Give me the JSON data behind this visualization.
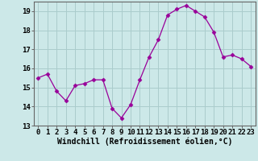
{
  "x": [
    0,
    1,
    2,
    3,
    4,
    5,
    6,
    7,
    8,
    9,
    10,
    11,
    12,
    13,
    14,
    15,
    16,
    17,
    18,
    19,
    20,
    21,
    22,
    23
  ],
  "y": [
    15.5,
    15.7,
    14.8,
    14.3,
    15.1,
    15.2,
    15.4,
    15.4,
    13.9,
    13.4,
    14.1,
    15.4,
    16.6,
    17.5,
    18.8,
    19.1,
    19.3,
    19.0,
    18.7,
    17.9,
    16.6,
    16.7,
    16.5,
    16.1
  ],
  "line_color": "#990099",
  "marker": "D",
  "marker_size": 2.5,
  "bg_color": "#cce8e8",
  "grid_color": "#aacccc",
  "xlabel": "Windchill (Refroidissement éolien,°C)",
  "xlabel_fontsize": 7,
  "tick_fontsize": 6.5,
  "ylim": [
    13,
    19.5
  ],
  "xlim": [
    -0.5,
    23.5
  ],
  "yticks": [
    13,
    14,
    15,
    16,
    17,
    18,
    19
  ],
  "xticks": [
    0,
    1,
    2,
    3,
    4,
    5,
    6,
    7,
    8,
    9,
    10,
    11,
    12,
    13,
    14,
    15,
    16,
    17,
    18,
    19,
    20,
    21,
    22,
    23
  ]
}
